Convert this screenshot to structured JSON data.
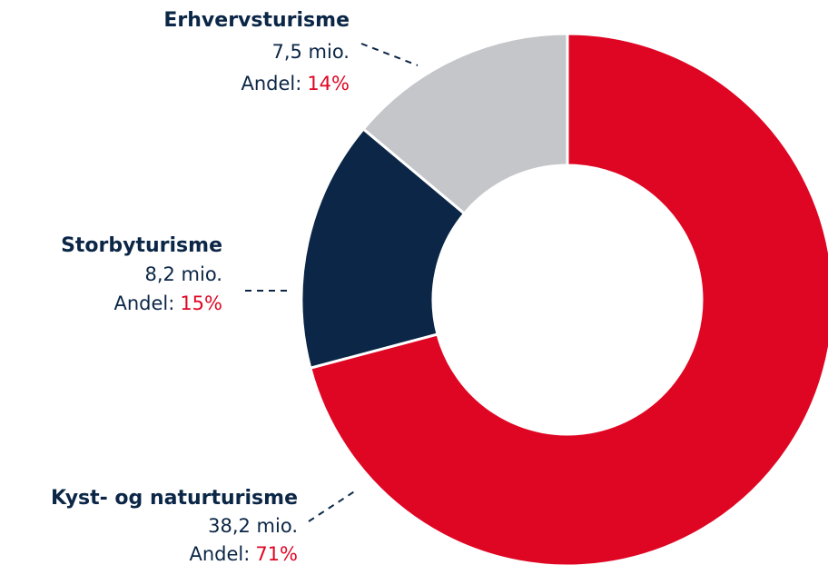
{
  "chart_data": {
    "type": "donut",
    "categories": [
      "Kyst- og naturturisme",
      "Storbyturisme",
      "Erhvervsturisme"
    ],
    "values": [
      38.2,
      8.2,
      7.5
    ],
    "value_labels": [
      "38,2 mio.",
      "8,2 mio.",
      "7,5 mio."
    ],
    "shares": [
      71,
      15,
      14
    ],
    "share_labels": [
      "71%",
      "15%",
      "14%"
    ],
    "share_prefix": "Andel:",
    "colors": [
      "#df0624",
      "#0b2646",
      "#c5c6ca"
    ]
  }
}
